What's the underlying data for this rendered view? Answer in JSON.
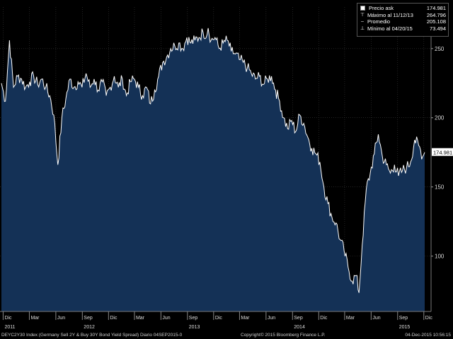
{
  "chart_data": {
    "type": "area",
    "series": [
      {
        "values": []
      }
    ],
    "x_start": "Nov 2011",
    "x_end": "Dec 2015",
    "x_ticks": [
      {
        "label": "Dic",
        "year": "2011",
        "date": "2011-12-01"
      },
      {
        "label": "Mar",
        "date": "2012-03-01"
      },
      {
        "label": "Jun",
        "date": "2012-06-01"
      },
      {
        "label": "Sep",
        "year": "2012",
        "date": "2012-09-01"
      },
      {
        "label": "Dic",
        "date": "2012-12-01"
      },
      {
        "label": "Mar",
        "date": "2013-03-01"
      },
      {
        "label": "Jun",
        "date": "2013-06-01"
      },
      {
        "label": "Sep",
        "year": "2013",
        "date": "2013-09-01"
      },
      {
        "label": "Dic",
        "date": "2013-12-01"
      },
      {
        "label": "Mar",
        "date": "2014-03-01"
      },
      {
        "label": "Jun",
        "date": "2014-06-01"
      },
      {
        "label": "Sep",
        "year": "2014",
        "date": "2014-09-01"
      },
      {
        "label": "Dic",
        "date": "2014-12-01"
      },
      {
        "label": "Mar",
        "date": "2015-03-01"
      },
      {
        "label": "Jun",
        "date": "2015-06-01"
      },
      {
        "label": "Sep",
        "year": "2015",
        "date": "2015-09-01"
      },
      {
        "label": "Dic",
        "date": "2015-12-01"
      }
    ],
    "y_ticks": [
      100,
      150,
      200,
      250
    ],
    "ylim": [
      60,
      280
    ],
    "last_value_label": "174.981",
    "legend": [
      {
        "symbol": "box-icon",
        "label": "Precio ask",
        "value": "174.981"
      },
      {
        "symbol": "max-marker-icon",
        "label": "Máximo al 11/12/13",
        "value": "264.796"
      },
      {
        "symbol": "avg-marker-icon",
        "label": "Promedio",
        "value": "205.108"
      },
      {
        "symbol": "min-marker-icon",
        "label": "Mínimo al 04/20/15",
        "value": "73.494"
      }
    ],
    "grid": true,
    "legend_placement": "top-right",
    "colors": {
      "area": "#143156",
      "line": "#ffffff",
      "background": "#000000",
      "grid": "#3a3a3a"
    }
  },
  "footer": {
    "left": "DEYC2Y30 Index (Germany Sell 2Y & Buy 30Y Bond Yield Spread)  Diario 04SEP2015-0",
    "center": "Copyright© 2015 Bloomberg Finance L.P.",
    "right": "04-Dec-2015 10:56:15"
  }
}
